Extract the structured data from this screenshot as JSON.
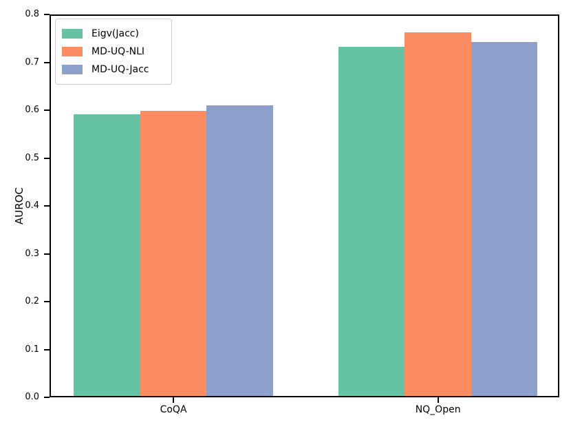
{
  "chart_data": {
    "type": "bar",
    "title": "",
    "xlabel": "",
    "ylabel": "AUROC",
    "categories": [
      "CoQA",
      "NQ_Open"
    ],
    "series": [
      {
        "name": "Eigv(Jacc)",
        "color": "#66c2a5",
        "values": [
          0.591,
          0.733
        ]
      },
      {
        "name": "MD-UQ-NLI",
        "color": "#fc8d62",
        "values": [
          0.598,
          0.763
        ]
      },
      {
        "name": "MD-UQ-Jacc",
        "color": "#8da0cb",
        "values": [
          0.61,
          0.742
        ]
      }
    ],
    "ylim": [
      0.0,
      0.8
    ],
    "ytick_step": 0.1,
    "ytick_labels": [
      "0.0",
      "0.1",
      "0.2",
      "0.3",
      "0.4",
      "0.5",
      "0.6",
      "0.7",
      "0.8"
    ],
    "grid": false,
    "legend_position": "upper left",
    "spine_color": "#000000",
    "background_color": "#ffffff"
  }
}
